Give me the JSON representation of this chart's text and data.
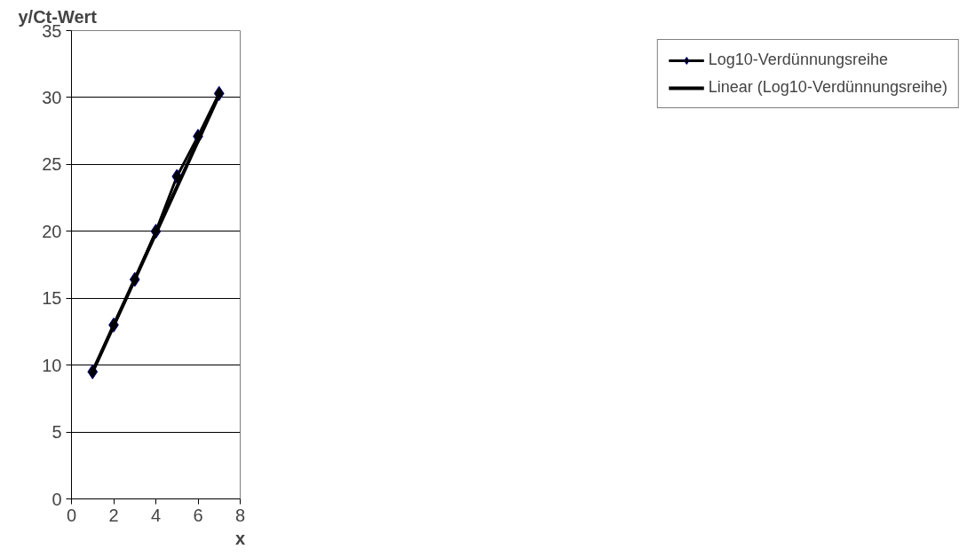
{
  "chart_data": {
    "type": "line",
    "xlabel": "x",
    "ylabel": "y/Ct-Wert",
    "xlim": [
      0,
      8
    ],
    "xticks": [
      0,
      2,
      4,
      6,
      8
    ],
    "ylim": [
      0,
      35
    ],
    "yticks": [
      0,
      5,
      10,
      15,
      20,
      25,
      30,
      35
    ],
    "grid": "y",
    "legend": "right",
    "marker": "diamond",
    "line_style": "solid",
    "series": [
      {
        "name": "Log10-Verdünnungsreihe",
        "color": "#000000",
        "x": [
          1,
          2,
          3,
          4,
          5,
          6,
          7
        ],
        "values": [
          9.5,
          13.0,
          16.4,
          20.0,
          24.1,
          27.1,
          30.3
        ]
      },
      {
        "name": "Linear (Log10-Verdünnungsreihe)",
        "color": "#000000",
        "type": "line",
        "marker": "none",
        "x": [
          1,
          7
        ],
        "values": [
          9.5,
          30.2
        ]
      }
    ]
  }
}
